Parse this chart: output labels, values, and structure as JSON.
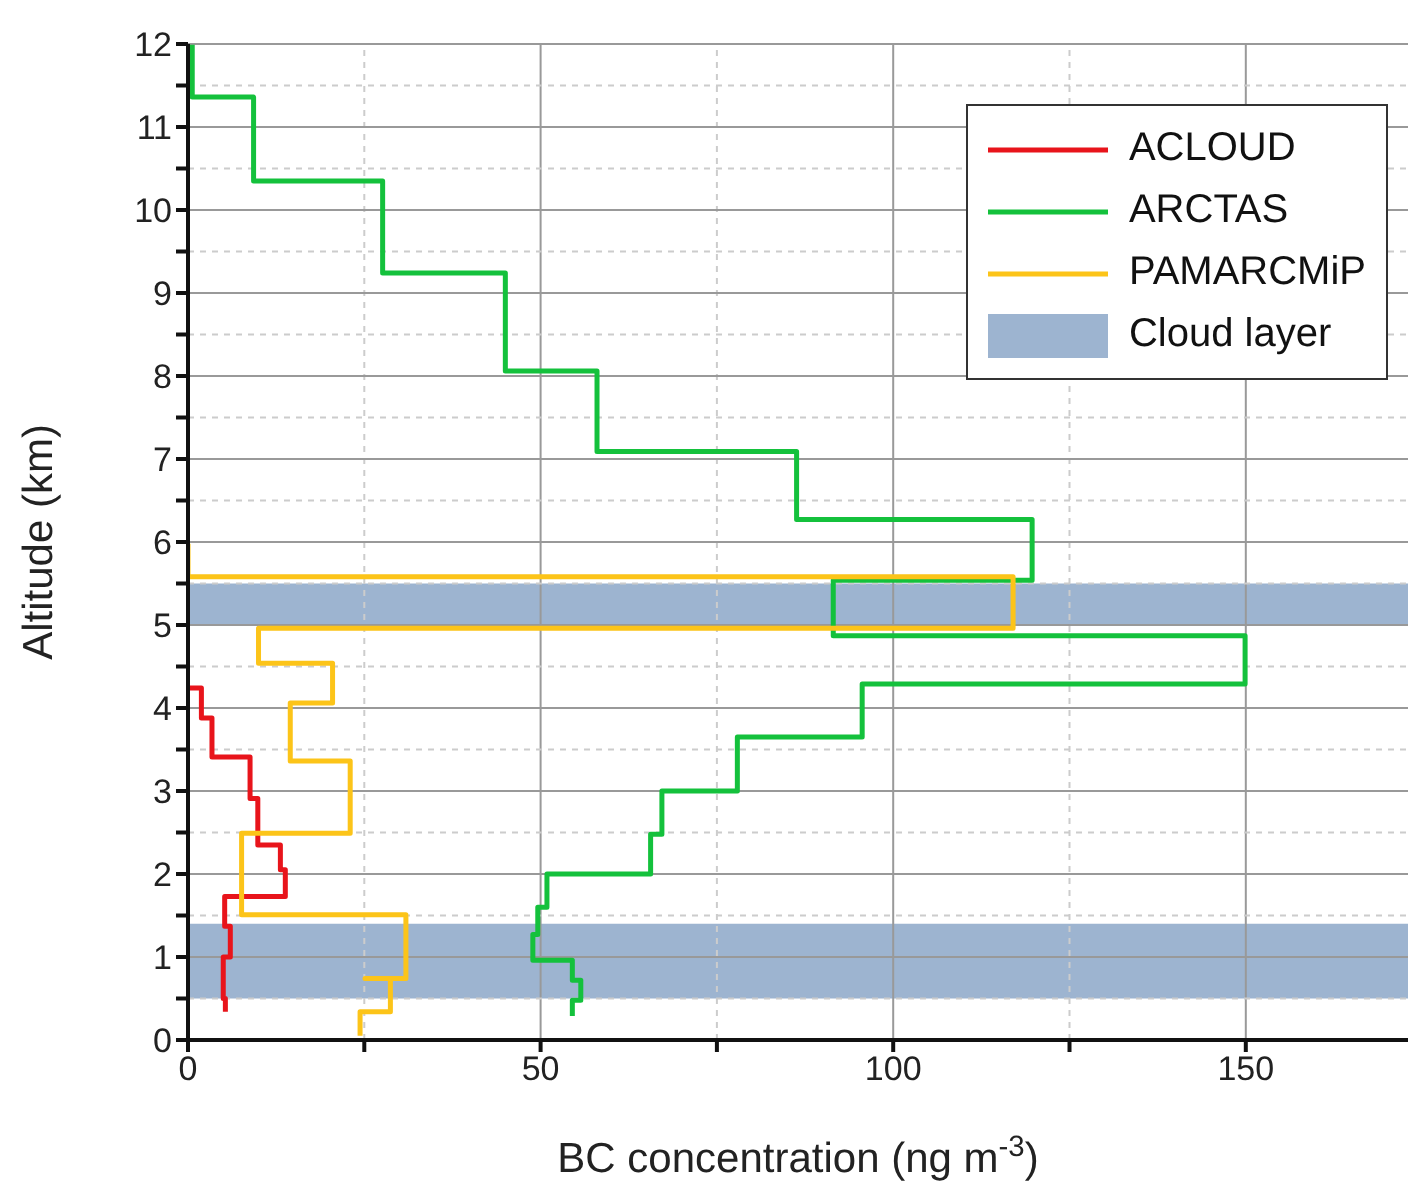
{
  "chart_data": {
    "type": "line",
    "xlabel": "BC concentration (ng m$^{-3}$)",
    "ylabel": "Altitude (km)",
    "xlim": [
      0,
      173
    ],
    "xticks": [
      0,
      {
        "value": 25,
        "label": null
      },
      50,
      {
        "value": 75,
        "label": null
      },
      100,
      {
        "value": 125,
        "label": null
      },
      150
    ],
    "ylim": [
      0,
      12
    ],
    "yticks": [
      0,
      {
        "value": 0.5,
        "label": null
      },
      1,
      {
        "value": 1.5,
        "label": null
      },
      2,
      {
        "value": 2.5,
        "label": null
      },
      3,
      {
        "value": 3.5,
        "label": null
      },
      4,
      {
        "value": 4.5,
        "label": null
      },
      5,
      {
        "value": 5.5,
        "label": null
      },
      6,
      {
        "value": 6.5,
        "label": null
      },
      7,
      {
        "value": 7.5,
        "label": null
      },
      8,
      {
        "value": 8.5,
        "label": null
      },
      9,
      {
        "value": 9.5,
        "label": null
      },
      10,
      {
        "value": 10.5,
        "label": null
      },
      11,
      {
        "value": 11.5,
        "label": null
      },
      12
    ],
    "grid": true,
    "legend": "top right",
    "marker": "none",
    "line_style": "solid",
    "series": [
      {
        "name": "ACLOUD",
        "color": "#e8141b",
        "x": [
          5.3,
          5.3,
          5.0,
          5.0,
          6.0,
          6.0,
          5.2,
          5.2,
          13.8,
          13.8,
          13.1,
          13.1,
          9.9,
          9.9,
          8.8,
          8.8,
          3.4,
          3.4,
          1.9,
          1.9,
          0.1
        ],
        "values": [
          0.34,
          0.5,
          0.5,
          1.0,
          1.0,
          1.37,
          1.37,
          1.73,
          1.73,
          2.05,
          2.05,
          2.35,
          2.35,
          2.91,
          2.91,
          3.41,
          3.41,
          3.88,
          3.88,
          4.24,
          4.24
        ]
      },
      {
        "name": "ARCTAS",
        "color": "#14c13c",
        "x": [
          54.5,
          54.5,
          55.7,
          55.7,
          54.5,
          54.5,
          48.9,
          48.9,
          49.6,
          49.6,
          50.9,
          50.9,
          65.6,
          65.6,
          67.2,
          67.2,
          77.9,
          77.9,
          95.6,
          95.6,
          149.9,
          149.9,
          91.5,
          91.5,
          119.7,
          119.7,
          86.3,
          86.3,
          58.0,
          58.0,
          45.0,
          45.0,
          27.6,
          27.6,
          9.3,
          9.3,
          0.6,
          0.6
        ],
        "values": [
          0.29,
          0.48,
          0.48,
          0.72,
          0.72,
          0.96,
          0.96,
          1.27,
          1.27,
          1.6,
          1.6,
          2.0,
          2.0,
          2.48,
          2.48,
          3.0,
          3.0,
          3.65,
          3.65,
          4.29,
          4.29,
          4.87,
          4.87,
          5.54,
          5.54,
          6.27,
          6.27,
          7.09,
          7.09,
          8.06,
          8.06,
          9.24,
          9.24,
          10.35,
          10.35,
          11.36,
          11.36,
          11.99
        ]
      },
      {
        "name": "PAMARCMiP",
        "color": "#fcc419",
        "x": [
          24.4,
          24.4,
          28.7,
          28.7,
          25.1,
          25.1,
          30.9,
          30.9,
          7.6,
          7.6,
          23.0,
          23.0,
          14.5,
          14.5,
          20.5,
          20.5,
          10.0,
          10.0,
          117,
          117,
          0,
          0
        ],
        "values": [
          0.05,
          0.34,
          0.34,
          0.74,
          0.74,
          0.74,
          0.74,
          1.51,
          1.51,
          2.49,
          2.49,
          3.36,
          3.36,
          4.06,
          4.06,
          4.54,
          4.54,
          4.96,
          4.96,
          5.58,
          5.58,
          5.98
        ]
      }
    ],
    "bands": [
      {
        "axis": "y",
        "from": 0.5,
        "to": 1.4,
        "label": "Cloud layer",
        "color": "#9db4d0"
      },
      {
        "axis": "y",
        "from": 5.0,
        "to": 5.5,
        "color": "#9db4d0"
      }
    ]
  }
}
